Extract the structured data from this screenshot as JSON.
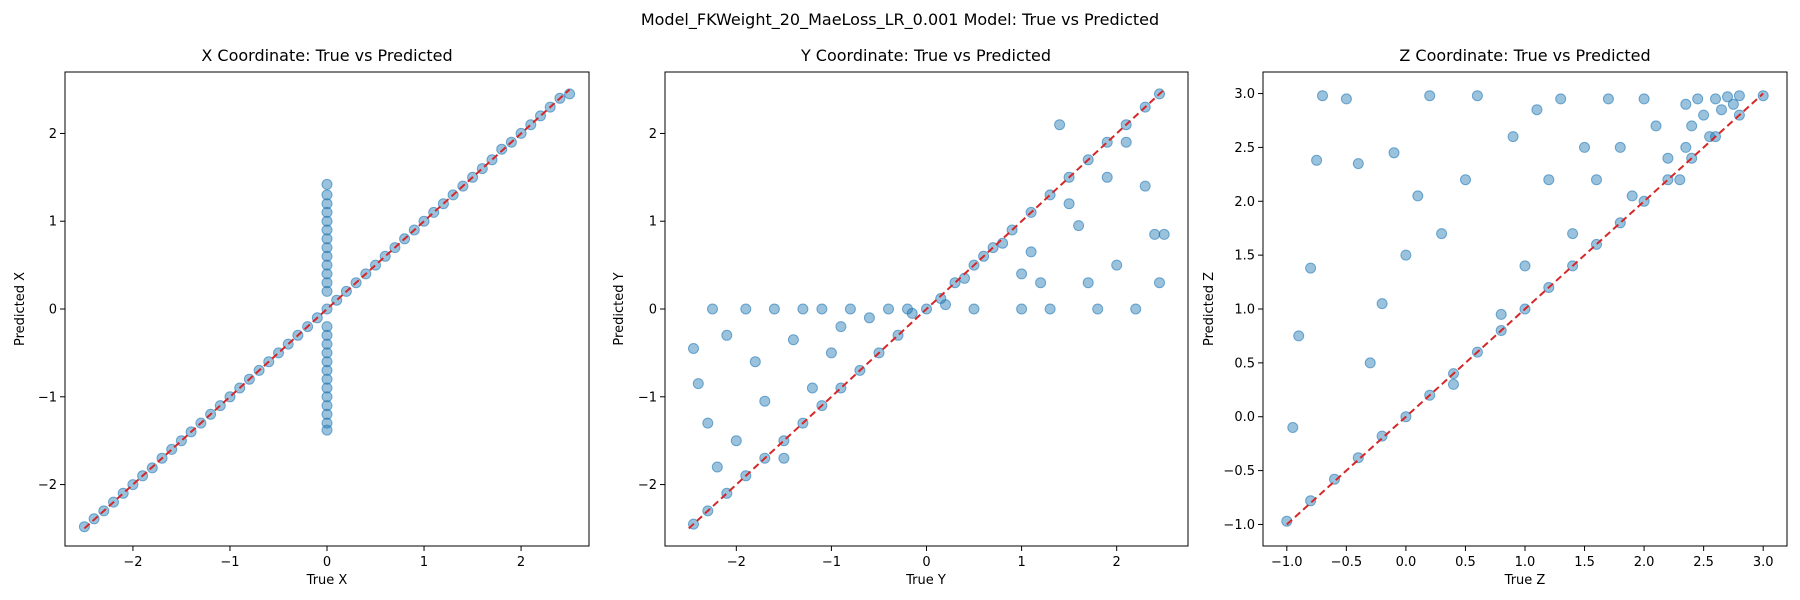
{
  "figure": {
    "title": "Model_FKWeight_20_MaeLoss_LR_0.001 Model: True vs Predicted"
  },
  "colors": {
    "points": "#1f77b4",
    "reference_line": "#d62728",
    "axes": "#000000",
    "background": "#ffffff"
  },
  "chart_data": [
    {
      "type": "scatter",
      "title": "X Coordinate: True vs Predicted",
      "xlabel": "True X",
      "ylabel": "Predicted X",
      "xlim": [
        -2.7,
        2.7
      ],
      "ylim": [
        -2.7,
        2.7
      ],
      "xticks": [
        -2,
        -1,
        0,
        1,
        2
      ],
      "yticks": [
        -2,
        -1,
        0,
        1,
        2
      ],
      "xtick_labels": [
        "−2",
        "−1",
        "0",
        "1",
        "2"
      ],
      "ytick_labels": [
        "−2",
        "−1",
        "0",
        "1",
        "2"
      ],
      "grid": false,
      "reference_line": {
        "x": [
          -2.5,
          2.5
        ],
        "y": [
          -2.5,
          2.5
        ],
        "style": "dashed"
      },
      "series": [
        {
          "values_note_free": true,
          "points": [
            [
              -2.5,
              -2.48
            ],
            [
              -2.4,
              -2.39
            ],
            [
              -2.3,
              -2.3
            ],
            [
              -2.2,
              -2.2
            ],
            [
              -2.1,
              -2.1
            ],
            [
              -2.0,
              -2.0
            ],
            [
              -1.9,
              -1.9
            ],
            [
              -1.8,
              -1.81
            ],
            [
              -1.7,
              -1.7
            ],
            [
              -1.6,
              -1.6
            ],
            [
              -1.5,
              -1.5
            ],
            [
              -1.4,
              -1.4
            ],
            [
              -1.3,
              -1.3
            ],
            [
              -1.2,
              -1.2
            ],
            [
              -1.1,
              -1.1
            ],
            [
              -1.0,
              -1.0
            ],
            [
              -0.9,
              -0.9
            ],
            [
              -0.8,
              -0.8
            ],
            [
              -0.7,
              -0.7
            ],
            [
              -0.6,
              -0.6
            ],
            [
              -0.5,
              -0.5
            ],
            [
              -0.4,
              -0.4
            ],
            [
              -0.3,
              -0.3
            ],
            [
              -0.2,
              -0.2
            ],
            [
              -0.1,
              -0.1
            ],
            [
              0.0,
              0.0
            ],
            [
              0.1,
              0.1
            ],
            [
              0.2,
              0.2
            ],
            [
              0.3,
              0.3
            ],
            [
              0.4,
              0.4
            ],
            [
              0.5,
              0.5
            ],
            [
              0.6,
              0.6
            ],
            [
              0.7,
              0.7
            ],
            [
              0.8,
              0.8
            ],
            [
              0.9,
              0.9
            ],
            [
              1.0,
              1.0
            ],
            [
              1.1,
              1.1
            ],
            [
              1.2,
              1.2
            ],
            [
              1.3,
              1.3
            ],
            [
              1.4,
              1.4
            ],
            [
              1.5,
              1.5
            ],
            [
              1.6,
              1.6
            ],
            [
              1.7,
              1.7
            ],
            [
              1.8,
              1.82
            ],
            [
              1.9,
              1.9
            ],
            [
              2.0,
              2.0
            ],
            [
              2.1,
              2.1
            ],
            [
              2.2,
              2.2
            ],
            [
              2.3,
              2.3
            ],
            [
              2.4,
              2.4
            ],
            [
              2.5,
              2.45
            ],
            [
              0.0,
              1.42
            ],
            [
              0.0,
              1.3
            ],
            [
              0.0,
              1.2
            ],
            [
              0.0,
              1.1
            ],
            [
              0.0,
              1.0
            ],
            [
              0.0,
              0.9
            ],
            [
              0.0,
              0.8
            ],
            [
              0.0,
              0.7
            ],
            [
              0.0,
              0.6
            ],
            [
              0.0,
              0.5
            ],
            [
              0.0,
              0.4
            ],
            [
              0.0,
              0.3
            ],
            [
              0.0,
              0.2
            ],
            [
              0.0,
              -0.2
            ],
            [
              0.0,
              -0.3
            ],
            [
              0.0,
              -0.4
            ],
            [
              0.0,
              -0.5
            ],
            [
              0.0,
              -0.6
            ],
            [
              0.0,
              -0.7
            ],
            [
              0.0,
              -0.8
            ],
            [
              0.0,
              -0.9
            ],
            [
              0.0,
              -1.0
            ],
            [
              0.0,
              -1.1
            ],
            [
              0.0,
              -1.2
            ],
            [
              0.0,
              -1.3
            ],
            [
              0.0,
              -1.38
            ]
          ]
        }
      ]
    },
    {
      "type": "scatter",
      "title": "Y Coordinate: True vs Predicted",
      "xlabel": "True Y",
      "ylabel": "Predicted Y",
      "xlim": [
        -2.75,
        2.75
      ],
      "ylim": [
        -2.7,
        2.7
      ],
      "xticks": [
        -2,
        -1,
        0,
        1,
        2
      ],
      "yticks": [
        -2,
        -1,
        0,
        1,
        2
      ],
      "xtick_labels": [
        "−2",
        "−1",
        "0",
        "1",
        "2"
      ],
      "ytick_labels": [
        "−2",
        "−1",
        "0",
        "1",
        "2"
      ],
      "grid": false,
      "reference_line": {
        "x": [
          -2.5,
          2.5
        ],
        "y": [
          -2.5,
          2.5
        ],
        "style": "dashed"
      },
      "series": [
        {
          "points": [
            [
              -2.45,
              -2.45
            ],
            [
              -2.3,
              -2.3
            ],
            [
              -2.1,
              -2.1
            ],
            [
              -1.9,
              -1.9
            ],
            [
              -1.7,
              -1.7
            ],
            [
              -1.5,
              -1.5
            ],
            [
              -1.3,
              -1.3
            ],
            [
              -1.1,
              -1.1
            ],
            [
              -0.9,
              -0.9
            ],
            [
              -0.7,
              -0.7
            ],
            [
              -0.5,
              -0.5
            ],
            [
              -0.3,
              -0.3
            ],
            [
              -0.15,
              -0.05
            ],
            [
              0.0,
              0.0
            ],
            [
              0.15,
              0.12
            ],
            [
              0.3,
              0.3
            ],
            [
              0.5,
              0.5
            ],
            [
              0.7,
              0.7
            ],
            [
              0.9,
              0.9
            ],
            [
              1.1,
              1.1
            ],
            [
              1.3,
              1.3
            ],
            [
              1.5,
              1.5
            ],
            [
              1.7,
              1.7
            ],
            [
              1.9,
              1.9
            ],
            [
              2.1,
              2.1
            ],
            [
              2.3,
              2.3
            ],
            [
              2.45,
              2.45
            ],
            [
              -2.45,
              -0.45
            ],
            [
              -2.4,
              -0.85
            ],
            [
              -2.3,
              -1.3
            ],
            [
              -2.25,
              0.0
            ],
            [
              -2.2,
              -1.8
            ],
            [
              -2.1,
              -0.3
            ],
            [
              -2.0,
              -1.5
            ],
            [
              -1.9,
              0.0
            ],
            [
              -1.8,
              -0.6
            ],
            [
              -1.7,
              -1.05
            ],
            [
              -1.6,
              0.0
            ],
            [
              -1.5,
              -1.7
            ],
            [
              -1.4,
              -0.35
            ],
            [
              -1.3,
              0.0
            ],
            [
              -1.2,
              -0.9
            ],
            [
              -1.1,
              0.0
            ],
            [
              -1.0,
              -0.5
            ],
            [
              -0.9,
              -0.2
            ],
            [
              -0.8,
              0.0
            ],
            [
              -0.6,
              -0.1
            ],
            [
              -0.4,
              0.0
            ],
            [
              -0.2,
              0.0
            ],
            [
              0.2,
              0.05
            ],
            [
              0.4,
              0.35
            ],
            [
              0.5,
              0.0
            ],
            [
              0.6,
              0.6
            ],
            [
              0.8,
              0.75
            ],
            [
              1.0,
              0.0
            ],
            [
              1.0,
              0.4
            ],
            [
              1.1,
              0.65
            ],
            [
              1.2,
              0.3
            ],
            [
              1.3,
              0.0
            ],
            [
              1.4,
              2.1
            ],
            [
              1.5,
              1.2
            ],
            [
              1.6,
              0.95
            ],
            [
              1.7,
              0.3
            ],
            [
              1.8,
              0.0
            ],
            [
              1.9,
              1.5
            ],
            [
              2.0,
              0.5
            ],
            [
              2.1,
              1.9
            ],
            [
              2.2,
              0.0
            ],
            [
              2.3,
              1.4
            ],
            [
              2.4,
              0.85
            ],
            [
              2.45,
              0.3
            ],
            [
              2.5,
              0.85
            ]
          ]
        }
      ]
    },
    {
      "type": "scatter",
      "title": "Z Coordinate: True vs Predicted",
      "xlabel": "True Z",
      "ylabel": "Predicted Z",
      "xlim": [
        -1.2,
        3.2
      ],
      "ylim": [
        -1.2,
        3.2
      ],
      "xticks": [
        -1.0,
        -0.5,
        0.0,
        0.5,
        1.0,
        1.5,
        2.0,
        2.5,
        3.0
      ],
      "yticks": [
        -1.0,
        -0.5,
        0.0,
        0.5,
        1.0,
        1.5,
        2.0,
        2.5,
        3.0
      ],
      "xtick_labels": [
        "−1.0",
        "−0.5",
        "0.0",
        "0.5",
        "1.0",
        "1.5",
        "2.0",
        "2.5",
        "3.0"
      ],
      "ytick_labels": [
        "−1.0",
        "−0.5",
        "0.0",
        "0.5",
        "1.0",
        "1.5",
        "2.0",
        "2.5",
        "3.0"
      ],
      "grid": false,
      "reference_line": {
        "x": [
          -1.0,
          3.0
        ],
        "y": [
          -1.0,
          3.0
        ],
        "style": "dashed"
      },
      "series": [
        {
          "points": [
            [
              -1.0,
              -0.97
            ],
            [
              -0.8,
              -0.78
            ],
            [
              -0.6,
              -0.58
            ],
            [
              -0.4,
              -0.38
            ],
            [
              -0.2,
              -0.18
            ],
            [
              0.0,
              0.0
            ],
            [
              0.2,
              0.2
            ],
            [
              0.4,
              0.4
            ],
            [
              0.6,
              0.6
            ],
            [
              0.8,
              0.8
            ],
            [
              1.0,
              1.0
            ],
            [
              1.2,
              1.2
            ],
            [
              1.4,
              1.4
            ],
            [
              1.6,
              1.6
            ],
            [
              1.8,
              1.8
            ],
            [
              2.0,
              2.0
            ],
            [
              2.2,
              2.2
            ],
            [
              2.4,
              2.4
            ],
            [
              2.6,
              2.6
            ],
            [
              2.8,
              2.8
            ],
            [
              3.0,
              2.98
            ],
            [
              2.35,
              2.9
            ],
            [
              2.4,
              2.7
            ],
            [
              2.45,
              2.95
            ],
            [
              2.5,
              2.8
            ],
            [
              2.55,
              2.6
            ],
            [
              2.6,
              2.95
            ],
            [
              2.65,
              2.85
            ],
            [
              2.7,
              2.97
            ],
            [
              2.75,
              2.9
            ],
            [
              2.8,
              2.98
            ],
            [
              2.35,
              2.5
            ],
            [
              2.3,
              2.2
            ],
            [
              -0.95,
              -0.1
            ],
            [
              -0.9,
              0.75
            ],
            [
              -0.8,
              1.38
            ],
            [
              -0.75,
              2.38
            ],
            [
              -0.7,
              2.98
            ],
            [
              -0.5,
              2.95
            ],
            [
              -0.4,
              2.35
            ],
            [
              -0.3,
              0.5
            ],
            [
              -0.2,
              1.05
            ],
            [
              -0.1,
              2.45
            ],
            [
              0.0,
              1.5
            ],
            [
              0.1,
              2.05
            ],
            [
              0.2,
              2.98
            ],
            [
              0.3,
              1.7
            ],
            [
              0.4,
              0.3
            ],
            [
              0.5,
              2.2
            ],
            [
              0.6,
              2.98
            ],
            [
              0.8,
              0.95
            ],
            [
              0.9,
              2.6
            ],
            [
              1.0,
              1.4
            ],
            [
              1.1,
              2.85
            ],
            [
              1.2,
              2.2
            ],
            [
              1.3,
              2.95
            ],
            [
              1.4,
              1.7
            ],
            [
              1.5,
              2.5
            ],
            [
              1.6,
              2.2
            ],
            [
              1.7,
              2.95
            ],
            [
              1.8,
              2.5
            ],
            [
              1.9,
              2.05
            ],
            [
              2.0,
              2.95
            ],
            [
              2.1,
              2.7
            ],
            [
              2.2,
              2.4
            ]
          ]
        }
      ]
    }
  ]
}
